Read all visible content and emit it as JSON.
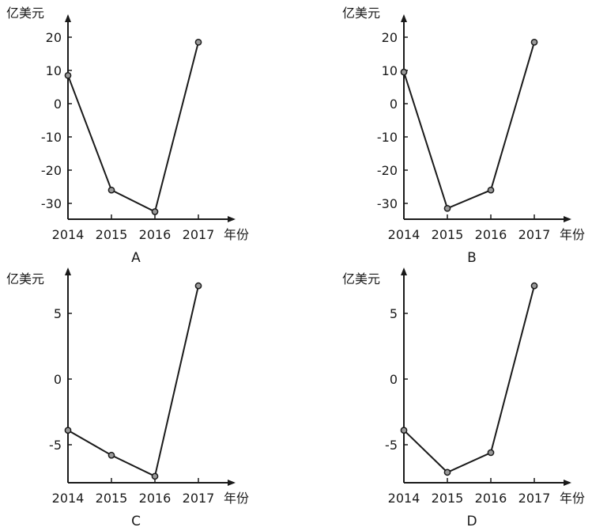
{
  "chart_data": [
    {
      "panel": "A",
      "type": "line",
      "ylabel": "亿美元",
      "xlabel": "年份",
      "categories": [
        "2014",
        "2015",
        "2016",
        "2017"
      ],
      "values": [
        8.5,
        -26,
        -32.5,
        18.5
      ],
      "yticks": [
        20,
        10,
        0,
        -10,
        -20,
        -30
      ],
      "ylim": [
        -34,
        24
      ],
      "grid": false
    },
    {
      "panel": "B",
      "type": "line",
      "ylabel": "亿美元",
      "xlabel": "年份",
      "categories": [
        "2014",
        "2015",
        "2016",
        "2017"
      ],
      "values": [
        9.5,
        -31.5,
        -26,
        18.5
      ],
      "yticks": [
        20,
        10,
        0,
        -10,
        -20,
        -30
      ],
      "ylim": [
        -34,
        24
      ],
      "grid": false
    },
    {
      "panel": "C",
      "type": "line",
      "ylabel": "亿美元",
      "xlabel": "年份",
      "categories": [
        "2014",
        "2015",
        "2016",
        "2017"
      ],
      "values": [
        -3.9,
        -5.8,
        -7.4,
        7.1
      ],
      "yticks": [
        5,
        0,
        -5
      ],
      "ylim": [
        -7.8,
        8.4
      ],
      "grid": false
    },
    {
      "panel": "D",
      "type": "line",
      "ylabel": "亿美元",
      "xlabel": "年份",
      "categories": [
        "2014",
        "2015",
        "2016",
        "2017"
      ],
      "values": [
        -3.9,
        -7.1,
        -5.6,
        7.1
      ],
      "yticks": [
        5,
        0,
        -5
      ],
      "ylim": [
        -7.8,
        8.4
      ],
      "grid": false
    }
  ]
}
